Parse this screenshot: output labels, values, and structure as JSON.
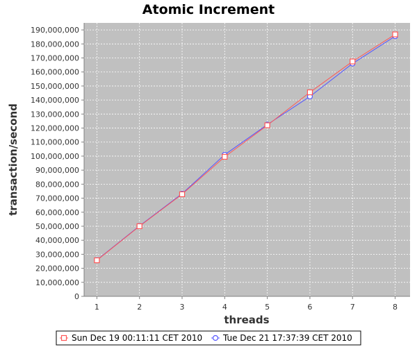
{
  "chart_data": {
    "type": "line",
    "title": "Atomic Increment",
    "xlabel": "threads",
    "ylabel": "transaction/second",
    "x": [
      1,
      2,
      3,
      4,
      5,
      6,
      7,
      8
    ],
    "xlim": [
      0.7,
      8.35
    ],
    "ylim": [
      0,
      195000000
    ],
    "ytick_step": 10000000,
    "y_tick_labels": [
      "0",
      "10,000,000",
      "20,000,000",
      "30,000,000",
      "40,000,000",
      "50,000,000",
      "60,000,000",
      "70,000,000",
      "80,000,000",
      "90,000,000",
      "100,000,000",
      "110,000,000",
      "120,000,000",
      "130,000,000",
      "140,000,000",
      "150,000,000",
      "160,000,000",
      "170,000,000",
      "180,000,000",
      "190,000,000"
    ],
    "x_tick_labels": [
      "1",
      "2",
      "3",
      "4",
      "5",
      "6",
      "7",
      "8"
    ],
    "grid": true,
    "plot_background": "#c0c0c0",
    "legend_position": "bottom",
    "series": [
      {
        "name": "Sun Dec 19 00:11:11 CET 2010",
        "color": "#ff5555",
        "marker": "square",
        "values": [
          25700000,
          50000000,
          72800000,
          99500000,
          122000000,
          145500000,
          167500000,
          186800000
        ]
      },
      {
        "name": "Tue Dec 21 17:37:39 CET 2010",
        "color": "#5555ff",
        "marker": "circle",
        "values": [
          25900000,
          50200000,
          73200000,
          101000000,
          122500000,
          142500000,
          166000000,
          185500000
        ]
      }
    ]
  }
}
